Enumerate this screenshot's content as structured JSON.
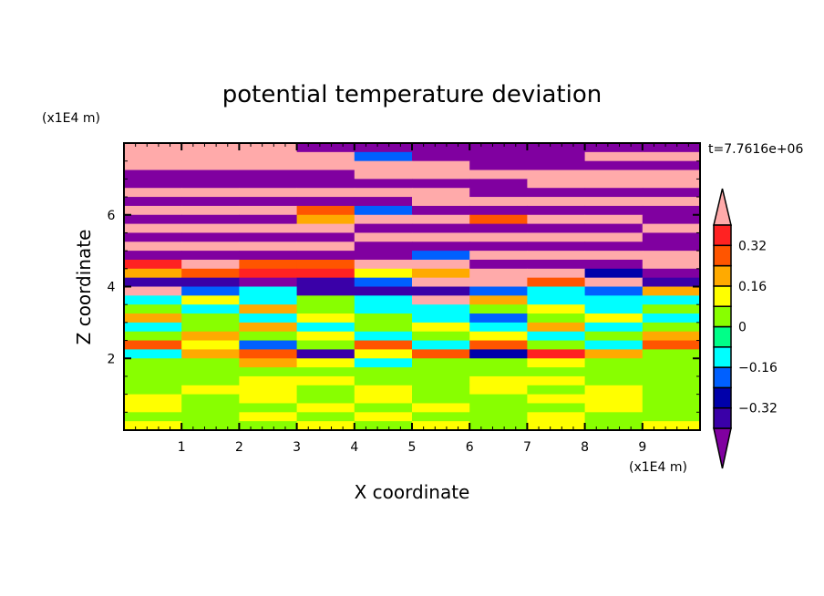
{
  "chart_data": {
    "type": "heatmap",
    "title": "potential temperature deviation",
    "xlabel": "X coordinate",
    "ylabel": "Z coordinate",
    "x_unit": "(x1E4 m)",
    "y_unit": "(x1E4 m)",
    "time_label": "t=7.7616e+06",
    "xlim": [
      0,
      10
    ],
    "ylim": [
      0,
      8
    ],
    "x_ticks": [
      "1",
      "2",
      "3",
      "4",
      "5",
      "6",
      "7",
      "8",
      "9"
    ],
    "x_tick_values": [
      1,
      2,
      3,
      4,
      5,
      6,
      7,
      8,
      9
    ],
    "y_ticks": [
      "2",
      "4",
      "6"
    ],
    "y_tick_values": [
      2,
      4,
      6
    ],
    "grid_x_centers": [
      0.5,
      1.5,
      2.5,
      3.5,
      4.5,
      5.5,
      6.5,
      7.5,
      8.5,
      9.5
    ],
    "grid_z_step": 0.25,
    "grid_rows_top_to_bottom": [
      [
        0.5,
        0.5,
        0.5,
        -0.5,
        -0.5,
        -0.5,
        -0.5,
        -0.5,
        -0.5,
        -0.5
      ],
      [
        0.5,
        0.5,
        0.5,
        0.5,
        -0.2,
        -0.5,
        -0.5,
        -0.5,
        0.5,
        0.5
      ],
      [
        0.5,
        0.5,
        0.5,
        0.5,
        0.5,
        0.5,
        -0.5,
        -0.5,
        -0.5,
        -0.5
      ],
      [
        -0.5,
        -0.5,
        -0.5,
        -0.5,
        0.5,
        0.5,
        0.5,
        0.5,
        0.5,
        0.5
      ],
      [
        -0.5,
        -0.5,
        -0.5,
        -0.5,
        -0.5,
        -0.5,
        -0.5,
        0.5,
        0.5,
        0.5
      ],
      [
        0.5,
        0.5,
        0.5,
        0.5,
        0.5,
        0.5,
        -0.5,
        -0.5,
        -0.5,
        -0.5
      ],
      [
        -0.5,
        -0.5,
        -0.5,
        -0.5,
        -0.5,
        0.5,
        0.5,
        0.5,
        0.5,
        0.5
      ],
      [
        0.5,
        0.5,
        0.5,
        0.3,
        -0.2,
        -0.5,
        -0.5,
        -0.5,
        -0.5,
        -0.5
      ],
      [
        -0.5,
        -0.5,
        -0.5,
        0.2,
        0.5,
        0.5,
        0.3,
        0.5,
        0.5,
        -0.5
      ],
      [
        0.5,
        0.5,
        0.5,
        0.5,
        -0.5,
        -0.5,
        -0.5,
        -0.5,
        -0.5,
        0.5
      ],
      [
        -0.5,
        -0.5,
        -0.5,
        -0.5,
        0.5,
        0.5,
        0.5,
        0.5,
        0.5,
        -0.5
      ],
      [
        0.5,
        0.5,
        0.5,
        0.5,
        -0.5,
        -0.5,
        -0.5,
        -0.5,
        -0.5,
        -0.5
      ],
      [
        -0.5,
        -0.5,
        -0.5,
        -0.5,
        -0.5,
        -0.2,
        0.5,
        0.5,
        0.5,
        0.5
      ],
      [
        0.35,
        0.5,
        0.3,
        0.3,
        0.5,
        0.5,
        -0.5,
        -0.5,
        -0.5,
        0.5
      ],
      [
        0.2,
        0.3,
        0.35,
        0.35,
        0.1,
        0.2,
        0.5,
        0.5,
        -0.3,
        -0.5
      ],
      [
        -0.35,
        -0.35,
        -0.5,
        -0.35,
        -0.2,
        0.5,
        0.5,
        0.3,
        0.5,
        -0.35
      ],
      [
        0.5,
        -0.2,
        -0.1,
        -0.35,
        -0.35,
        -0.35,
        -0.2,
        -0.1,
        -0.2,
        0.2
      ],
      [
        -0.1,
        0.1,
        -0.1,
        0.05,
        -0.1,
        0.5,
        0.2,
        -0.1,
        -0.1,
        -0.1
      ],
      [
        0.05,
        -0.1,
        0.2,
        0.05,
        -0.1,
        -0.1,
        0.05,
        0.1,
        -0.1,
        0.05
      ],
      [
        0.2,
        0.05,
        -0.1,
        0.1,
        0.05,
        -0.1,
        -0.2,
        0.05,
        0.1,
        -0.1
      ],
      [
        -0.1,
        0.05,
        0.2,
        -0.1,
        0.05,
        0.1,
        -0.1,
        0.2,
        -0.1,
        0.05
      ],
      [
        0.05,
        0.2,
        0.05,
        0.1,
        -0.1,
        0.05,
        0.1,
        -0.1,
        0.05,
        0.2
      ],
      [
        0.3,
        0.1,
        -0.2,
        0.05,
        0.3,
        -0.1,
        0.3,
        0.05,
        -0.1,
        0.3
      ],
      [
        -0.1,
        0.2,
        0.3,
        -0.35,
        0.1,
        0.3,
        -0.3,
        0.35,
        0.2,
        0.05
      ],
      [
        0.05,
        0.05,
        0.2,
        0.1,
        -0.1,
        0.05,
        0.05,
        0.1,
        0.05,
        0.05
      ],
      [
        0.05,
        0.05,
        0.05,
        0.05,
        0.05,
        0.05,
        0.05,
        0.05,
        0.05,
        0.05
      ],
      [
        0.05,
        0.05,
        0.1,
        0.1,
        0.05,
        0.05,
        0.1,
        0.1,
        0.05,
        0.05
      ],
      [
        0.05,
        0.1,
        0.1,
        0.05,
        0.1,
        0.05,
        0.1,
        0.05,
        0.1,
        0.05
      ],
      [
        0.1,
        0.05,
        0.1,
        0.05,
        0.1,
        0.05,
        0.05,
        0.1,
        0.1,
        0.05
      ],
      [
        0.1,
        0.05,
        0.05,
        0.1,
        0.05,
        0.1,
        0.05,
        0.05,
        0.1,
        0.05
      ],
      [
        0.05,
        0.05,
        0.1,
        0.05,
        0.1,
        0.05,
        0.05,
        0.1,
        0.05,
        0.05
      ],
      [
        0.1,
        0.05,
        0.05,
        0.1,
        0.05,
        0.1,
        0.05,
        0.1,
        0.05,
        0.1
      ]
    ],
    "levels": [
      -0.4,
      -0.32,
      -0.24,
      -0.16,
      -0.08,
      0,
      0.08,
      0.16,
      0.24,
      0.32,
      0.4
    ],
    "colors": [
      "#8000a0",
      "#3a00a8",
      "#0000aa",
      "#0060ff",
      "#00ffff",
      "#00ff88",
      "#88ff00",
      "#ffff00",
      "#ffaa00",
      "#ff5500",
      "#ff2222",
      "#ffaaaa"
    ],
    "colorbar_labels": [
      "0.32",
      "0.16",
      "0",
      "-0.16",
      "-0.32"
    ],
    "colorbar_label_values": [
      0.32,
      0.16,
      0,
      -0.16,
      -0.32
    ],
    "legend_position": "right"
  }
}
